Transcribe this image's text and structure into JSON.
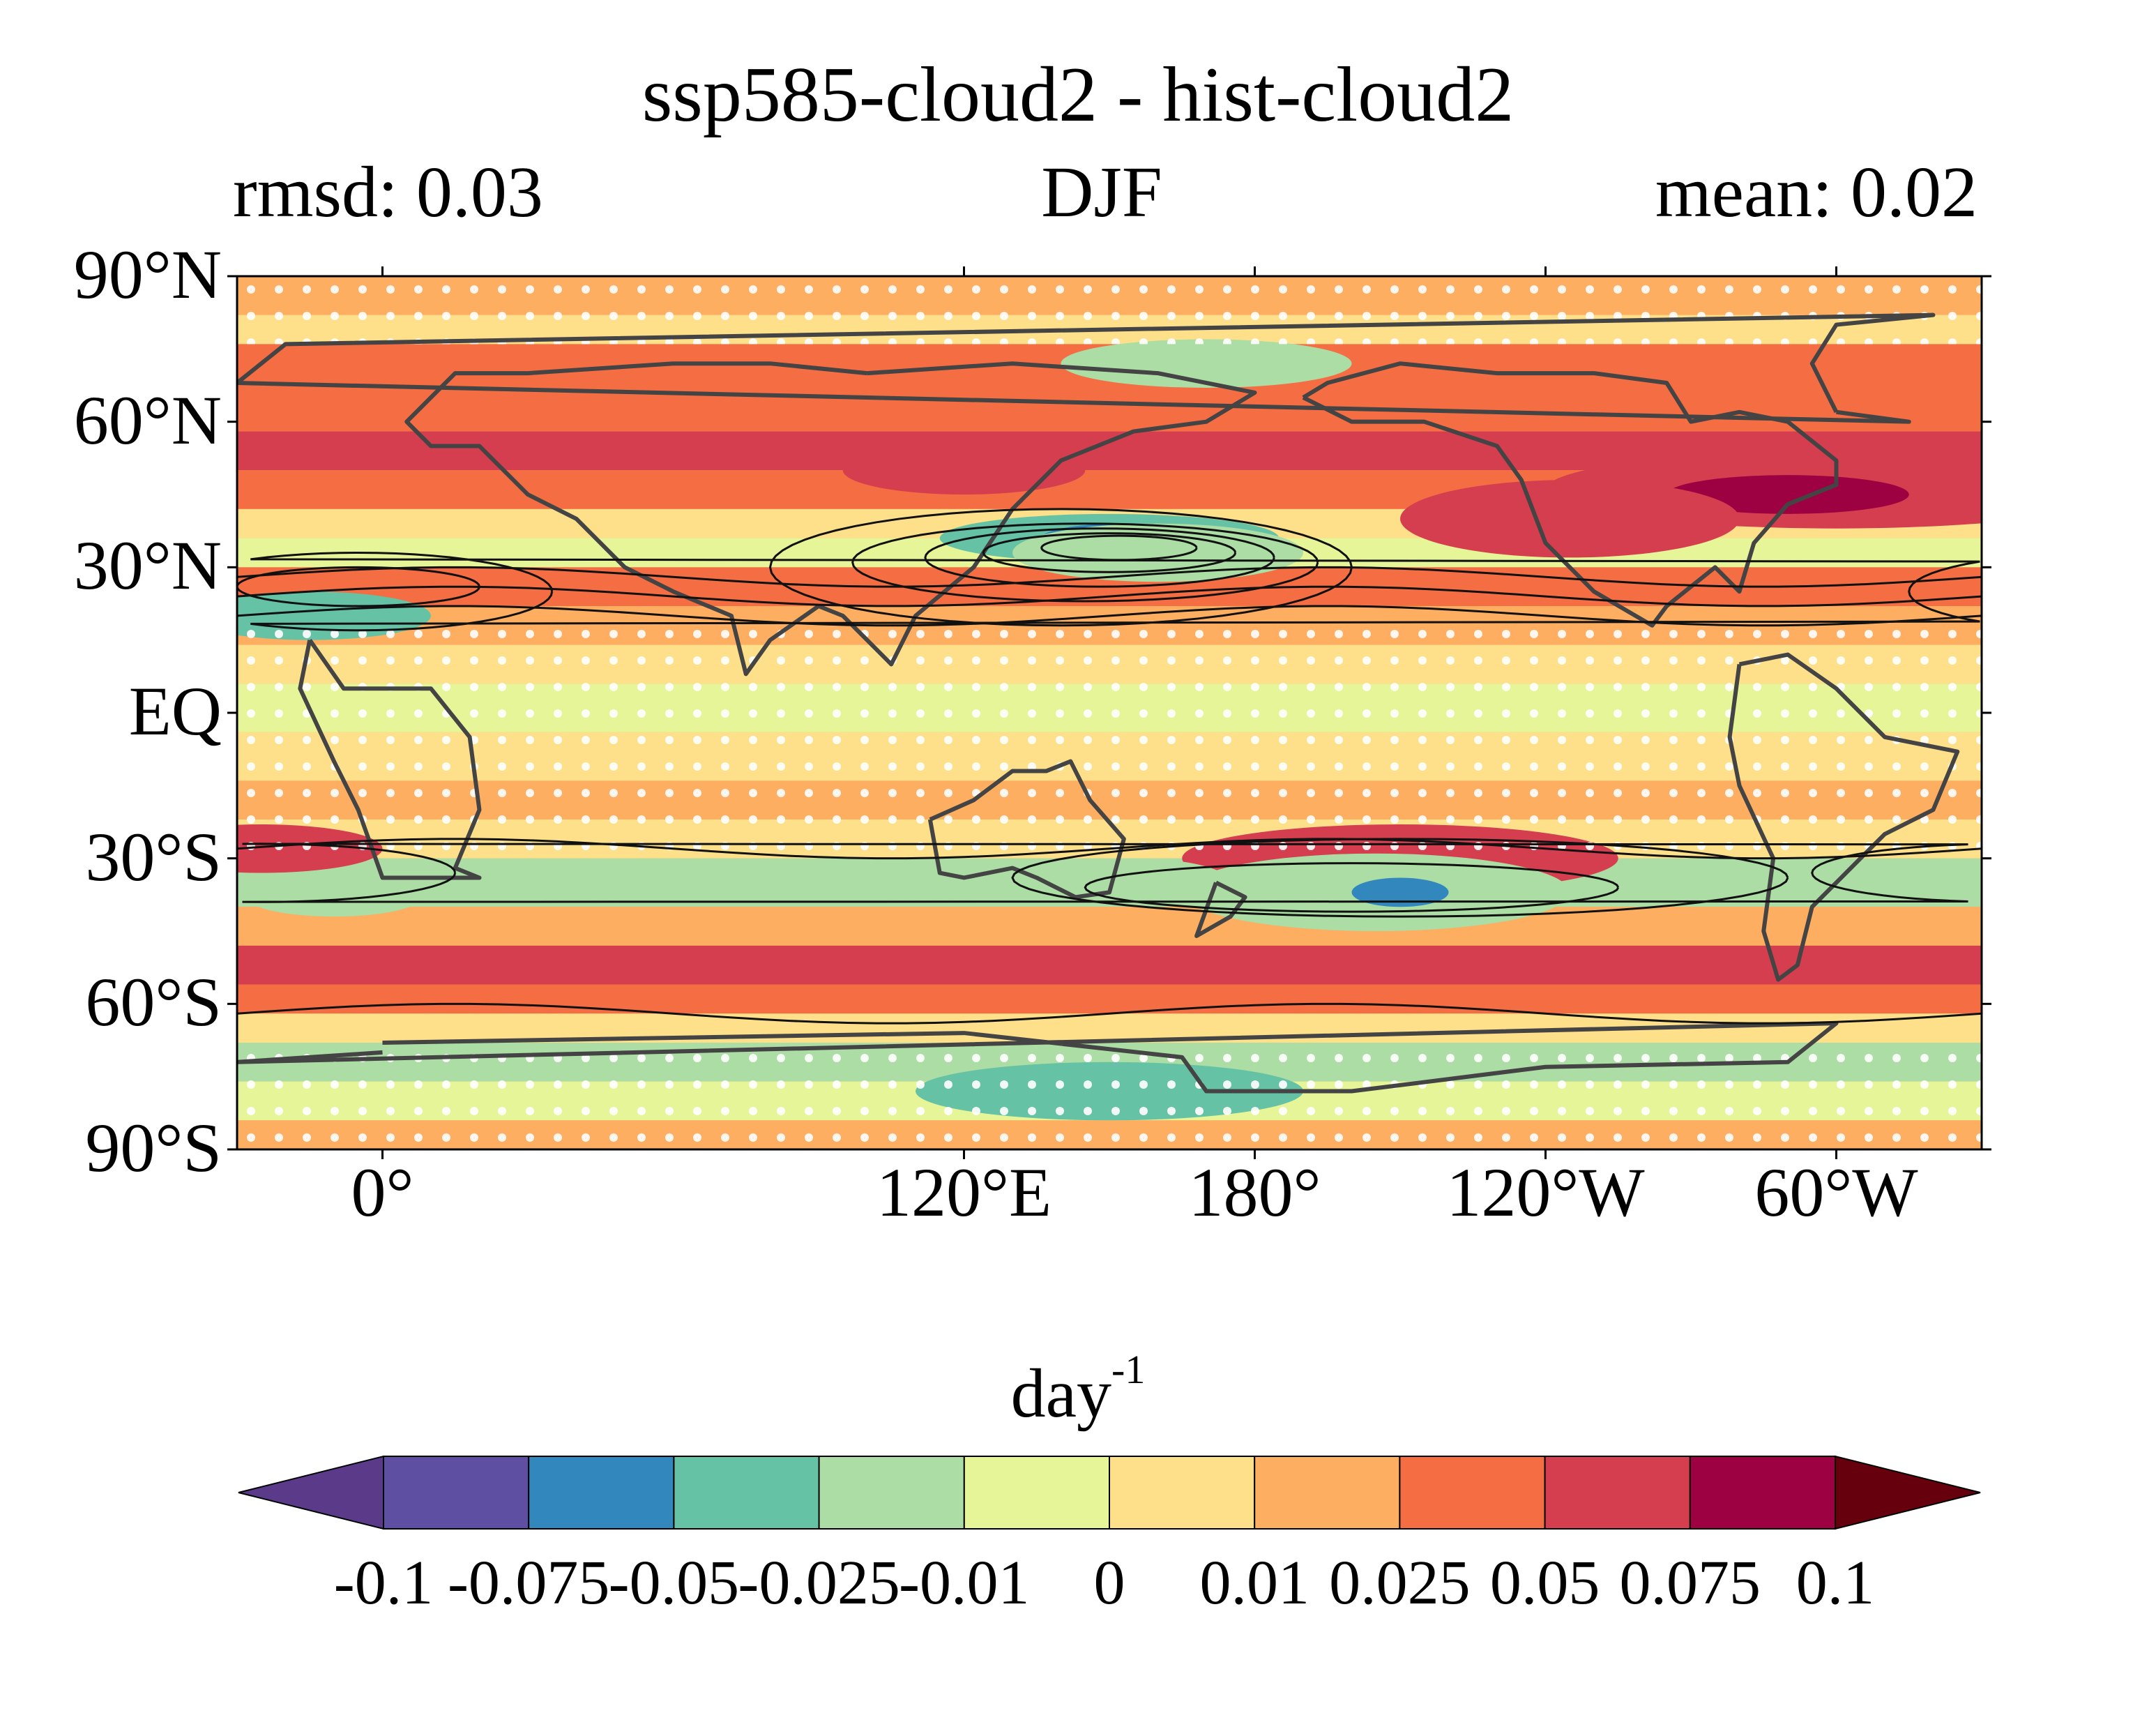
{
  "title": "ssp585-cloud2 - hist-cloud2",
  "left_label": "rmsd: 0.03",
  "center_label": "DJF",
  "right_label": "mean: 0.02",
  "units_base": "day",
  "units_exponent": "-1",
  "map": {
    "projection": "plate-carree",
    "central_longitude": 150,
    "lat_range": [
      -90,
      90
    ],
    "lon_range": [
      330,
      -30
    ],
    "y_ticks": [
      {
        "value": 90,
        "label": "90°N"
      },
      {
        "value": 60,
        "label": "60°N"
      },
      {
        "value": 30,
        "label": "30°N"
      },
      {
        "value": 0,
        "label": "EQ"
      },
      {
        "value": -30,
        "label": "30°S"
      },
      {
        "value": -60,
        "label": "60°S"
      },
      {
        "value": -90,
        "label": "90°S"
      }
    ],
    "x_ticks": [
      {
        "value": 120,
        "label": "120°E"
      },
      {
        "value": 180,
        "label": "180°"
      },
      {
        "value": 240,
        "label": "120°W"
      },
      {
        "value": 300,
        "label": "60°W"
      },
      {
        "value": 360,
        "label": "0°"
      }
    ],
    "stippling": "white dots",
    "overlay": "black contour lines"
  },
  "colorbar": {
    "levels": [
      -0.1,
      -0.075,
      -0.05,
      -0.025,
      -0.01,
      0,
      0.01,
      0.025,
      0.05,
      0.075,
      0.1
    ],
    "tick_labels": [
      "-0.1",
      "-0.075",
      "-0.05",
      "-0.025",
      "-0.01",
      "0",
      "0.01",
      "0.025",
      "0.05",
      "0.075",
      "0.1"
    ],
    "colors": [
      "#5e4fa2",
      "#3288bd",
      "#66c2a5",
      "#abdda4",
      "#e6f598",
      "#fee08b",
      "#fdae61",
      "#f46d43",
      "#d53e4f",
      "#9e0142"
    ],
    "under_color": "#5b3a8a",
    "over_color": "#67000d",
    "extend": "both"
  }
}
